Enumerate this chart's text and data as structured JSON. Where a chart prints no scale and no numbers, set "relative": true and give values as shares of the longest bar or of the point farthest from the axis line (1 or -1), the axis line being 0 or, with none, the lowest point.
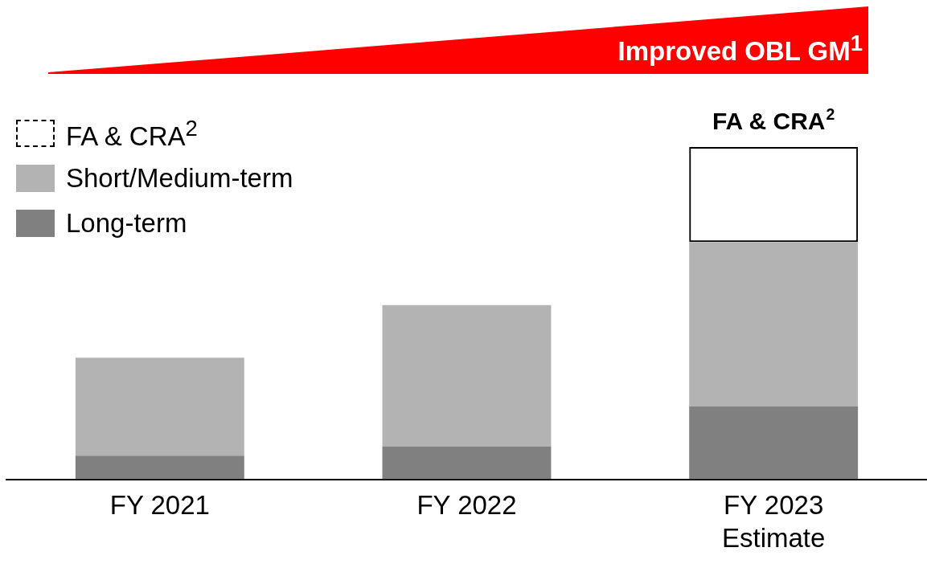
{
  "chart_data": {
    "type": "bar",
    "stacked": true,
    "relative": true,
    "title": "Improved OBL GM$^{1}$",
    "categories": [
      "FY 2021",
      "FY 2022",
      "FY 2023\nEstimate"
    ],
    "series": [
      {
        "name": "Long-term",
        "color": "#808080",
        "values": [
          0.071,
          0.099,
          0.219
        ]
      },
      {
        "name": "Short/Medium-term",
        "color": "#b3b3b3",
        "values": [
          0.295,
          0.425,
          0.495
        ]
      },
      {
        "name": "FA & CRA$^{2}$",
        "color": "#000000",
        "line_style": "dashed",
        "values": [
          null,
          null,
          0.286
        ]
      }
    ],
    "legend": "top left",
    "annotations": [
      {
        "text": "FA & CRA$^{2}$",
        "x": "FY 2023\nEstimate",
        "y": 1
      }
    ]
  }
}
